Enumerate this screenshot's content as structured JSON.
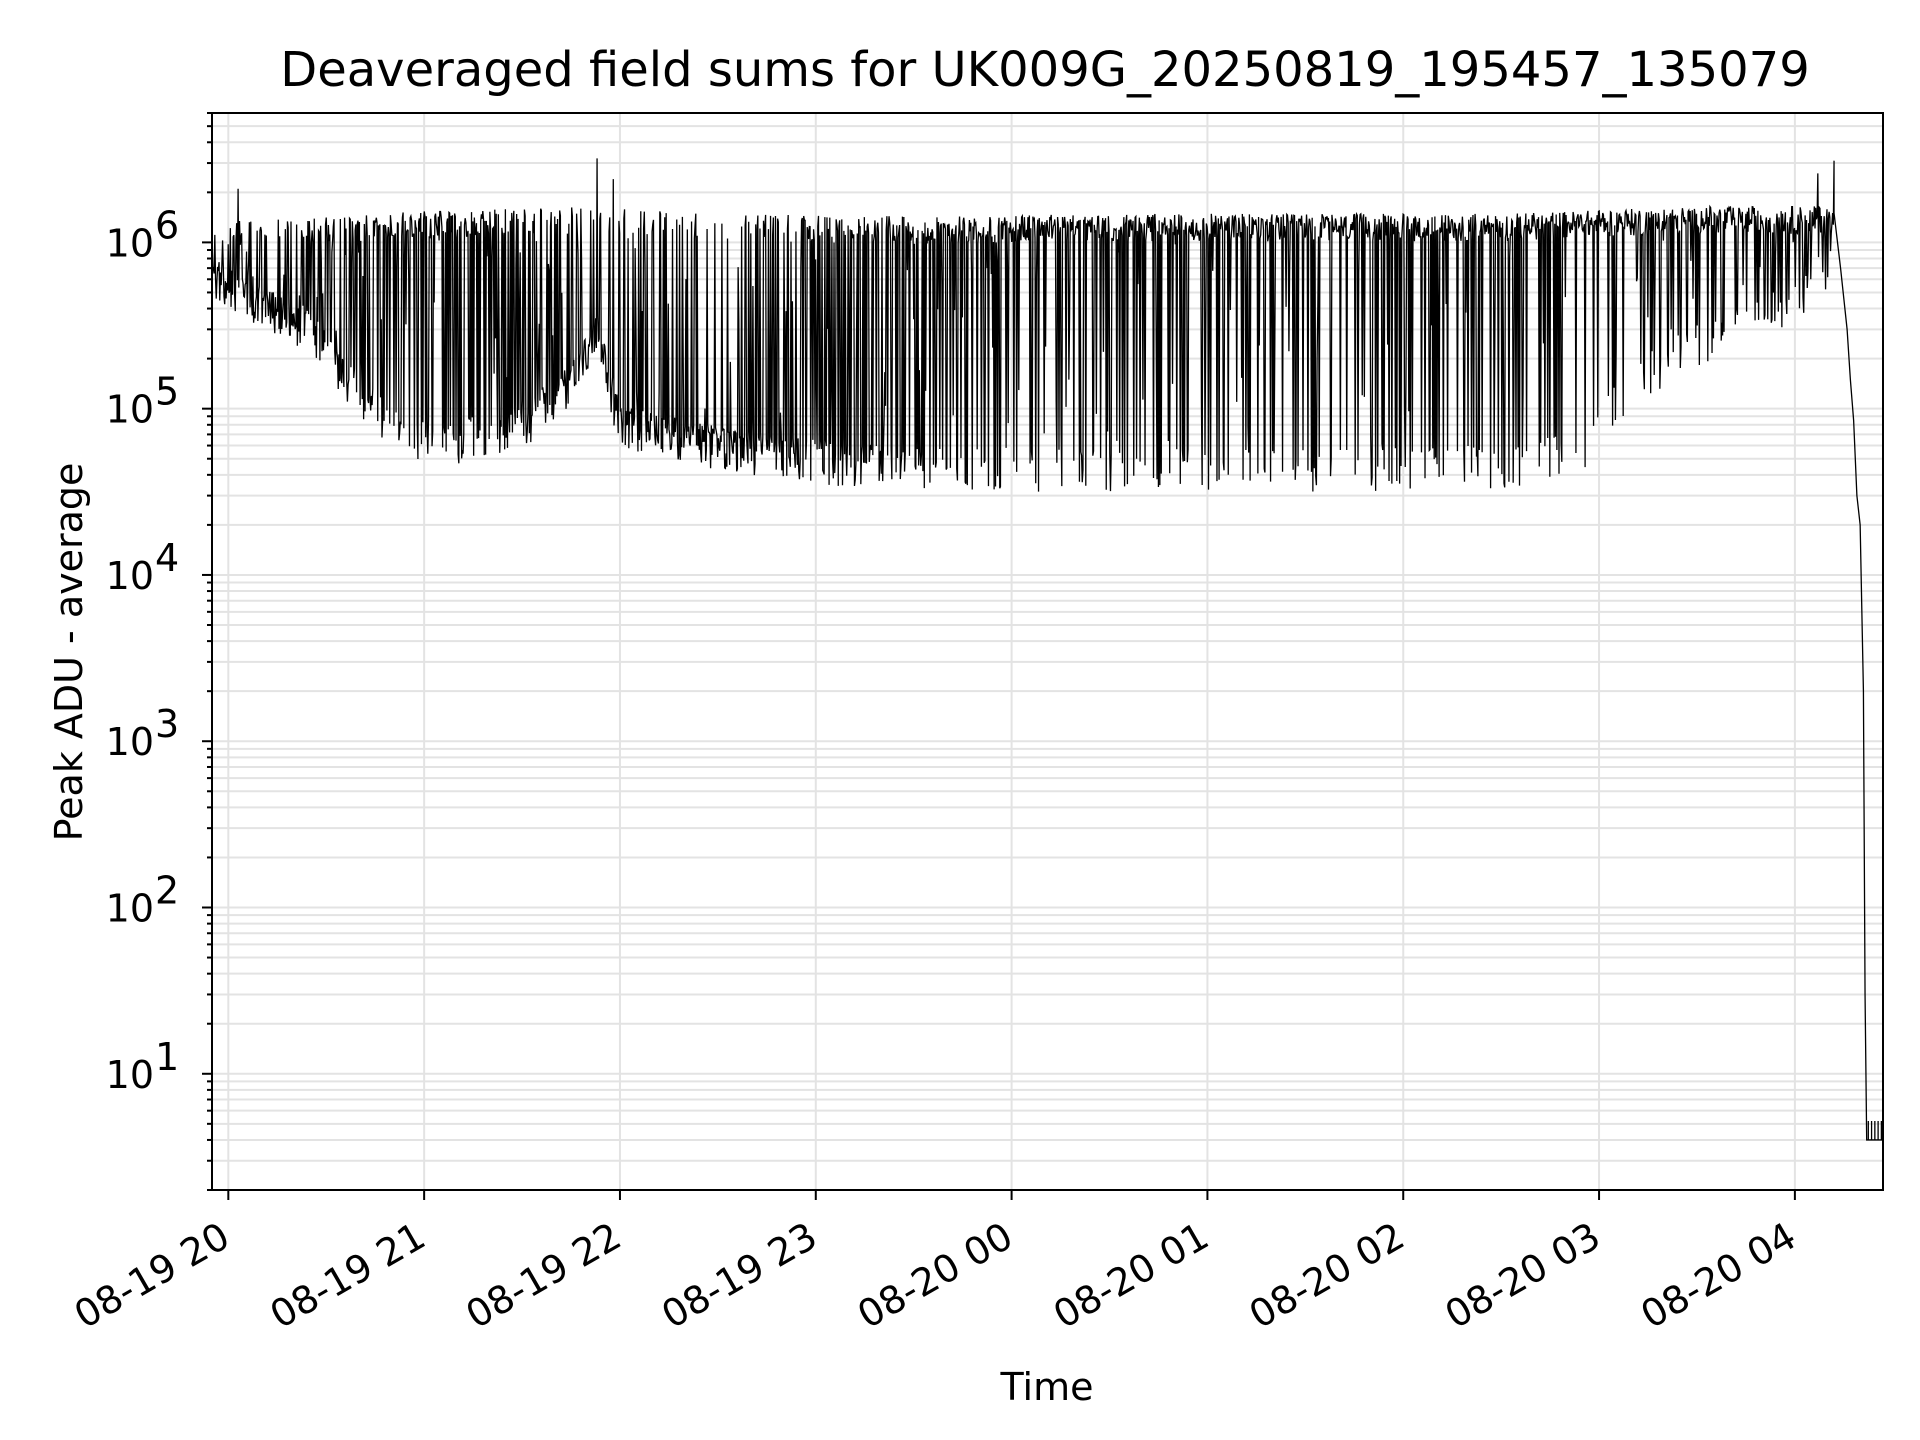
{
  "chart_data": {
    "type": "line",
    "title": "Deaveraged field sums for UK009G_20250819_195457_135079",
    "xlabel": "Time",
    "ylabel": "Peak ADU - average",
    "y_scale": "log",
    "xlim": [
      "2025-08-19 19:55",
      "2025-08-20 04:27"
    ],
    "ylim": [
      2,
      6000000.0
    ],
    "grid": true,
    "line_color": "#000000",
    "grid_color": "#e3e3e3",
    "x_ticks": [
      {
        "t": "2025-08-19 20:00",
        "label": "08-19 20"
      },
      {
        "t": "2025-08-19 21:00",
        "label": "08-19 21"
      },
      {
        "t": "2025-08-19 22:00",
        "label": "08-19 22"
      },
      {
        "t": "2025-08-19 23:00",
        "label": "08-19 23"
      },
      {
        "t": "2025-08-20 00:00",
        "label": "08-20 00"
      },
      {
        "t": "2025-08-20 01:00",
        "label": "08-20 01"
      },
      {
        "t": "2025-08-20 02:00",
        "label": "08-20 02"
      },
      {
        "t": "2025-08-20 03:00",
        "label": "08-20 03"
      },
      {
        "t": "2025-08-20 04:00",
        "label": "08-20 04"
      }
    ],
    "y_ticks": [
      {
        "v": 10,
        "base": "10",
        "exp": "1"
      },
      {
        "v": 100,
        "base": "10",
        "exp": "2"
      },
      {
        "v": 1000,
        "base": "10",
        "exp": "3"
      },
      {
        "v": 10000,
        "base": "10",
        "exp": "4"
      },
      {
        "v": 100000,
        "base": "10",
        "exp": "5"
      },
      {
        "v": 1000000,
        "base": "10",
        "exp": "6"
      }
    ],
    "series": [
      {
        "style": "dense vertical spikes between baseline and peak",
        "baseline": [
          [
            "2025-08-19 19:55",
            600000
          ],
          [
            "2025-08-19 20:05",
            500000
          ],
          [
            "2025-08-19 20:15",
            380000
          ],
          [
            "2025-08-19 20:25",
            300000
          ],
          [
            "2025-08-19 20:35",
            160000
          ],
          [
            "2025-08-19 20:45",
            100000
          ],
          [
            "2025-08-19 20:55",
            70000
          ],
          [
            "2025-08-19 21:10",
            65000
          ],
          [
            "2025-08-19 21:30",
            80000
          ],
          [
            "2025-08-19 21:45",
            150000
          ],
          [
            "2025-08-19 21:53",
            300000
          ],
          [
            "2025-08-19 22:00",
            80000
          ],
          [
            "2025-08-19 22:30",
            60000
          ],
          [
            "2025-08-19 23:00",
            50000
          ],
          [
            "2025-08-19 23:30",
            45000
          ],
          [
            "2025-08-20 00:00",
            45000
          ],
          [
            "2025-08-20 00:30",
            45000
          ],
          [
            "2025-08-20 01:00",
            45000
          ],
          [
            "2025-08-20 01:30",
            45000
          ],
          [
            "2025-08-20 02:00",
            45000
          ],
          [
            "2025-08-20 02:30",
            45000
          ],
          [
            "2025-08-20 02:55",
            60000
          ],
          [
            "2025-08-20 03:10",
            150000
          ],
          [
            "2025-08-20 03:30",
            250000
          ],
          [
            "2025-08-20 03:50",
            350000
          ],
          [
            "2025-08-20 04:02",
            500000
          ],
          [
            "2025-08-20 04:10",
            700000
          ]
        ],
        "peak": [
          [
            "2025-08-19 19:55",
            1200000
          ],
          [
            "2025-08-19 20:30",
            1300000
          ],
          [
            "2025-08-19 21:00",
            1400000
          ],
          [
            "2025-08-19 21:30",
            1450000
          ],
          [
            "2025-08-19 21:50",
            1500000
          ],
          [
            "2025-08-19 22:30",
            1350000
          ],
          [
            "2025-08-19 23:30",
            1300000
          ],
          [
            "2025-08-20 00:30",
            1350000
          ],
          [
            "2025-08-20 01:30",
            1350000
          ],
          [
            "2025-08-20 02:30",
            1350000
          ],
          [
            "2025-08-20 03:30",
            1500000
          ],
          [
            "2025-08-20 04:10",
            1500000
          ]
        ],
        "spike_density": [
          [
            "2025-08-19 19:55",
            0.15
          ],
          [
            "2025-08-19 20:25",
            0.3
          ],
          [
            "2025-08-19 20:55",
            0.6
          ],
          [
            "2025-08-19 21:55",
            0.2
          ],
          [
            "2025-08-19 22:25",
            0.15
          ],
          [
            "2025-08-19 22:45",
            0.35
          ],
          [
            "2025-08-19 23:20",
            0.5
          ],
          [
            "2025-08-20 00:00",
            0.7
          ],
          [
            "2025-08-20 02:00",
            0.75
          ],
          [
            "2025-08-20 03:00",
            0.8
          ],
          [
            "2025-08-20 04:05",
            0.7
          ]
        ],
        "outliers": [
          [
            "2025-08-19 20:03",
            2100000
          ],
          [
            "2025-08-19 21:53",
            3200000
          ],
          [
            "2025-08-19 21:58",
            2400000
          ],
          [
            "2025-08-20 04:07",
            2600000
          ],
          [
            "2025-08-20 04:12",
            3100000
          ]
        ],
        "tail": [
          [
            "2025-08-20 04:12",
            1500000
          ],
          [
            "2025-08-20 04:14",
            700000
          ],
          [
            "2025-08-20 04:16",
            300000
          ],
          [
            "2025-08-20 04:17",
            150000
          ],
          [
            "2025-08-20 04:18",
            85000
          ],
          [
            "2025-08-20 04:19",
            30000
          ],
          [
            "2025-08-20 04:20",
            20000
          ],
          [
            "2025-08-20 04:21",
            2000
          ],
          [
            "2025-08-20 04:21:30",
            30
          ],
          [
            "2025-08-20 04:22",
            4
          ],
          [
            "2025-08-20 04:27",
            4
          ]
        ]
      }
    ]
  }
}
